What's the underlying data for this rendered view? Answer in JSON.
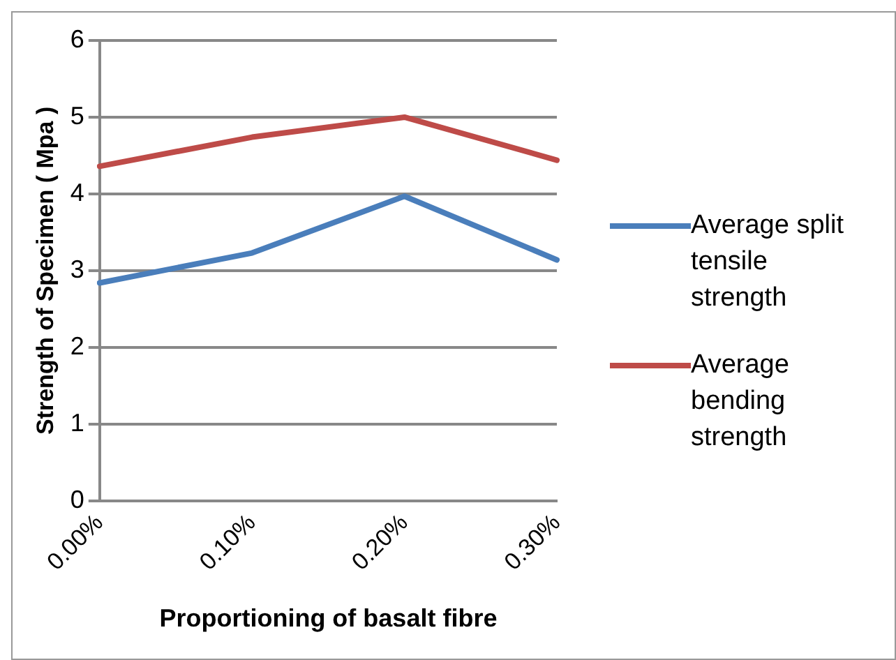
{
  "chart_data": {
    "type": "line",
    "xlabel": "Proportioning of basalt fibre",
    "ylabel": "Strength of Specimen ( Mpa )",
    "categories": [
      "0.00%",
      "0.10%",
      "0.20%",
      "0.30%"
    ],
    "series": [
      {
        "name": "Average split tensile strength",
        "color": "#4a7ebb",
        "values": [
          2.84,
          3.23,
          3.97,
          3.14
        ]
      },
      {
        "name": "Average bending strength",
        "color": "#be4b48",
        "values": [
          4.36,
          4.74,
          5.0,
          4.44
        ]
      }
    ],
    "ylim": [
      0,
      6
    ],
    "yticks": [
      0,
      1,
      2,
      3,
      4,
      5,
      6
    ],
    "grid": "y",
    "legend": "right",
    "marker": "none"
  }
}
